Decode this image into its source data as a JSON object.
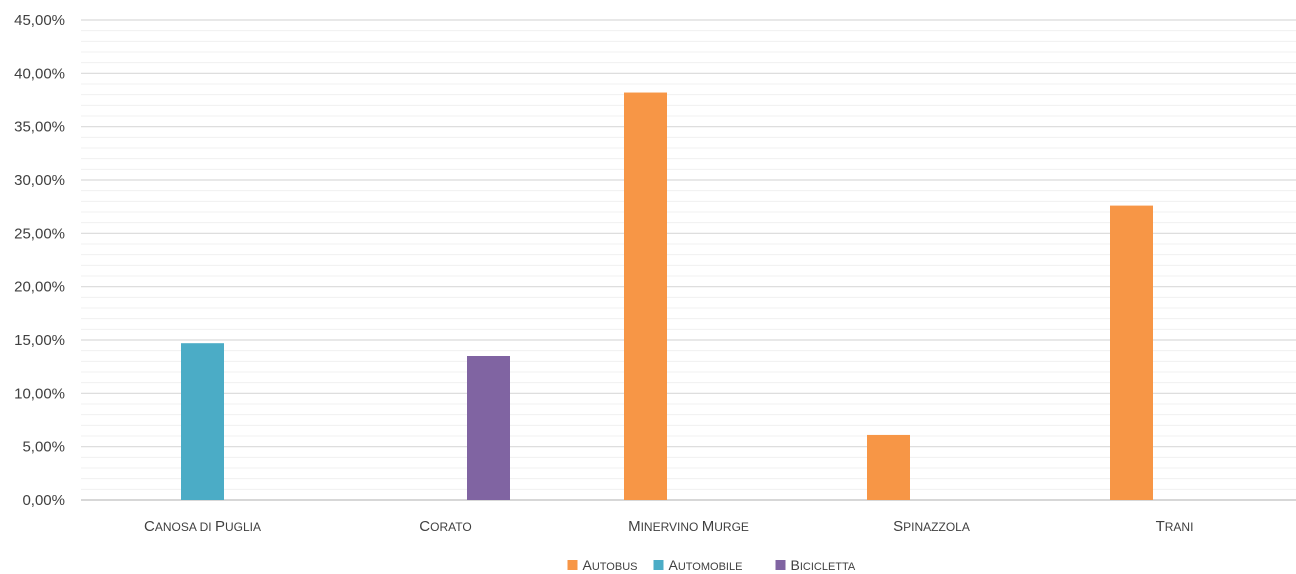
{
  "chart_data": {
    "type": "bar",
    "categories": [
      "Canosa di Puglia",
      "Corato",
      "Minervino Murge",
      "Spinazzola",
      "Trani"
    ],
    "series": [
      {
        "name": "Autobus",
        "color": "#F79646",
        "values": [
          0,
          0,
          38.2,
          6.1,
          27.6
        ]
      },
      {
        "name": "Automobile",
        "color": "#4BACC6",
        "values": [
          14.7,
          0,
          0,
          0,
          0
        ]
      },
      {
        "name": "Bicicletta",
        "color": "#8064A2",
        "values": [
          0,
          13.5,
          0,
          0,
          0
        ]
      }
    ],
    "ylim": [
      0,
      45
    ],
    "yticks": [
      "0,00%",
      "5,00%",
      "10,00%",
      "15,00%",
      "20,00%",
      "25,00%",
      "30,00%",
      "35,00%",
      "40,00%",
      "45,00%"
    ],
    "grid": true,
    "legend_position": "bottom"
  }
}
